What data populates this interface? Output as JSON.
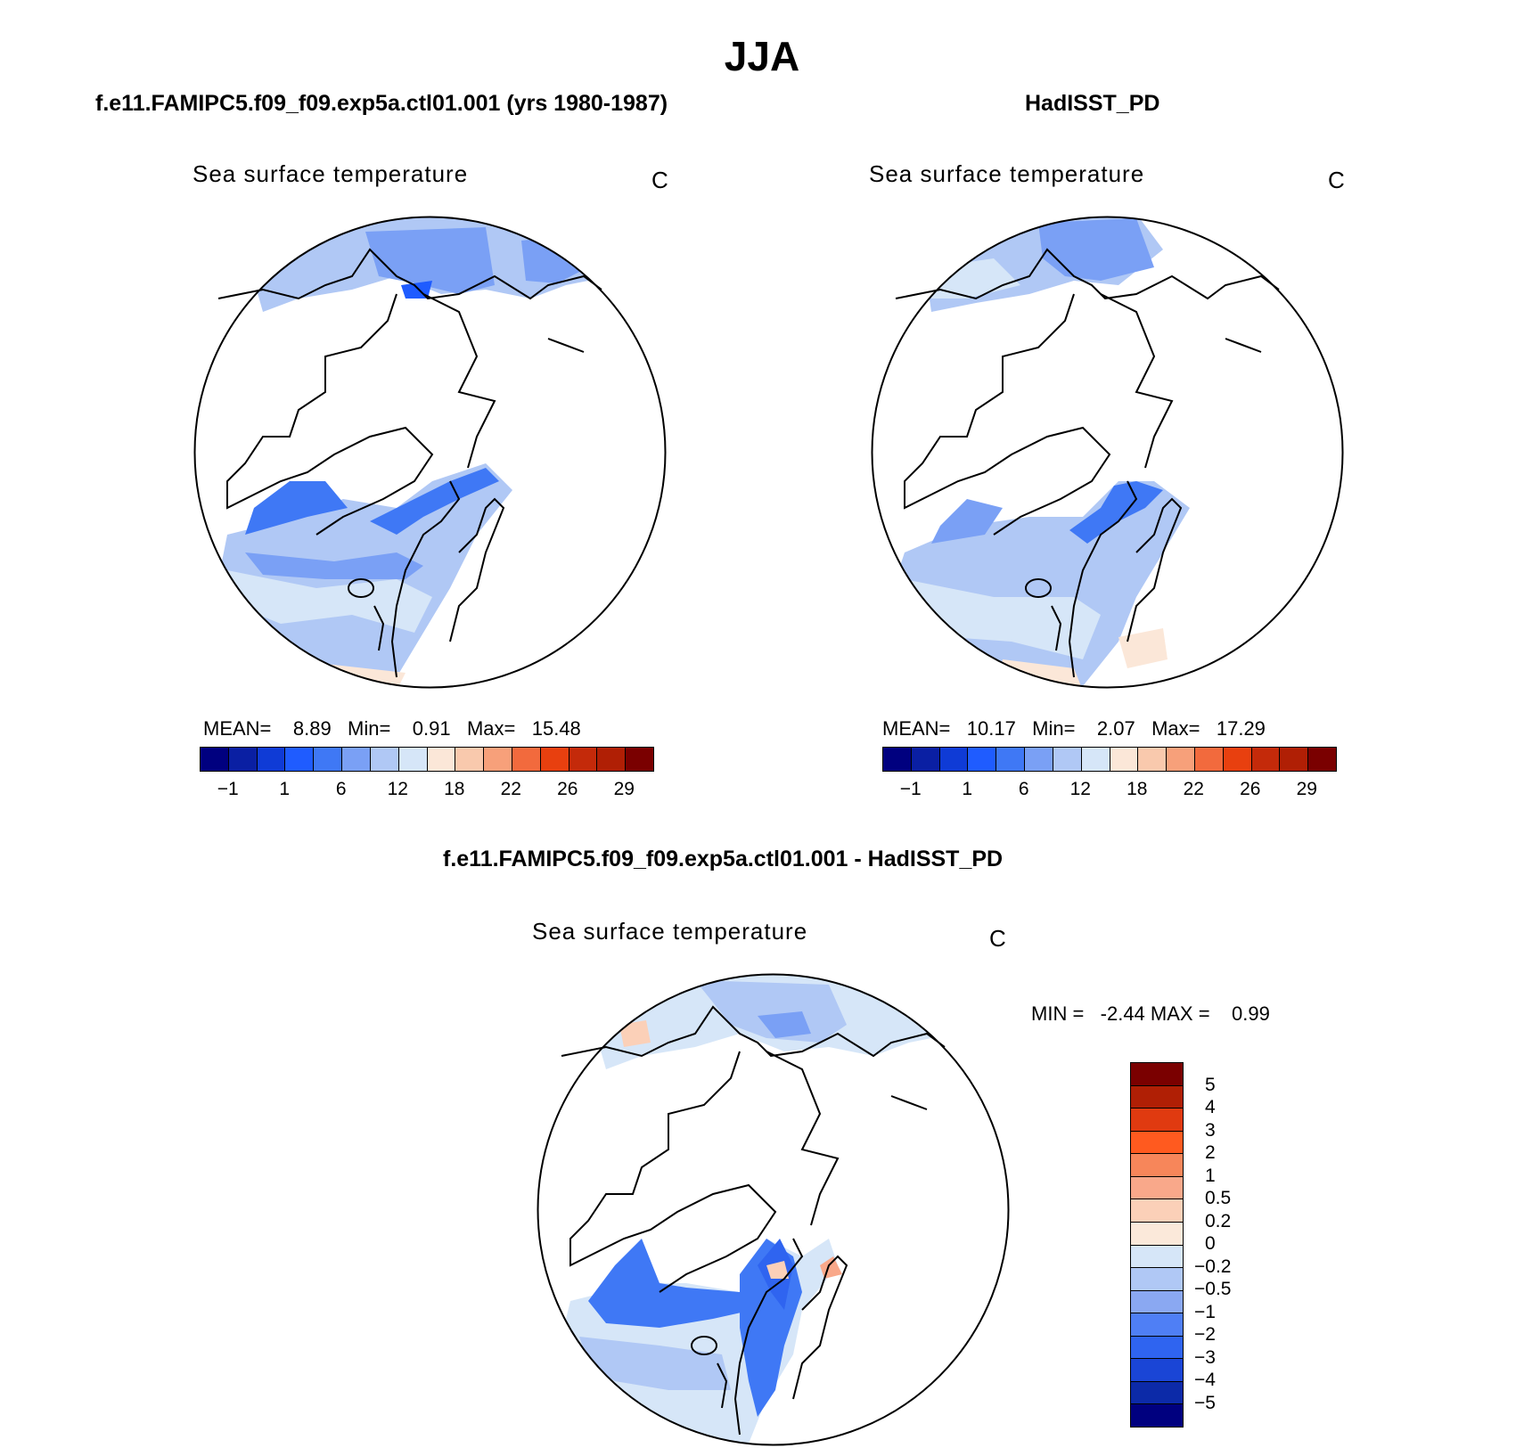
{
  "title": "JJA",
  "panels": [
    {
      "case": "f.e11.FAMIPC5.f09_f09.exp5a.ctl01.001 (yrs 1980-1987)",
      "field": "Sea surface temperature",
      "unit": "C",
      "stats": {
        "mean_label": "MEAN=",
        "mean": "8.89",
        "min_label": "Min=",
        "min": "0.91",
        "max_label": "Max=",
        "max": "15.48"
      }
    },
    {
      "case": "HadISST_PD",
      "field": "Sea surface temperature",
      "unit": "C",
      "stats": {
        "mean_label": "MEAN=",
        "mean": "10.17",
        "min_label": "Min=",
        "min": "2.07",
        "max_label": "Max=",
        "max": "17.29"
      }
    }
  ],
  "difference": {
    "case": "f.e11.FAMIPC5.f09_f09.exp5a.ctl01.001 - HadISST_PD",
    "field": "Sea surface temperature",
    "unit": "C",
    "stats": {
      "min_label": "MIN =",
      "min": "-2.44",
      "max_label": "MAX =",
      "max": "0.99"
    }
  },
  "colorbar_main": {
    "colors": [
      "#00007f",
      "#0a1fa3",
      "#0f3bd6",
      "#1f5cff",
      "#3f78f5",
      "#7aa0f5",
      "#b0c8f5",
      "#d6e6f8",
      "#fbe7d8",
      "#f9c9ad",
      "#f7a07a",
      "#f26a3d",
      "#e8400f",
      "#c42a0a",
      "#b01f05",
      "#7a0000"
    ],
    "labels": [
      "−1",
      "1",
      "6",
      "12",
      "18",
      "22",
      "26",
      "29"
    ]
  },
  "colorbar_diff": {
    "colors_top_to_bottom": [
      "#7a0000",
      "#b01f05",
      "#e03a10",
      "#ff5a1f",
      "#f7865a",
      "#f9a88a",
      "#fbd0b8",
      "#fbe9da",
      "#d6e6f8",
      "#b0c8f5",
      "#8aa8f2",
      "#4f7ff5",
      "#2f64f0",
      "#1a45d6",
      "#0c2aa8",
      "#00007f"
    ],
    "labels": [
      "5",
      "4",
      "3",
      "2",
      "1",
      "0.5",
      "0.2",
      "0",
      "−0.2",
      "−0.5",
      "−1",
      "−2",
      "−3",
      "−4",
      "−5"
    ]
  }
}
